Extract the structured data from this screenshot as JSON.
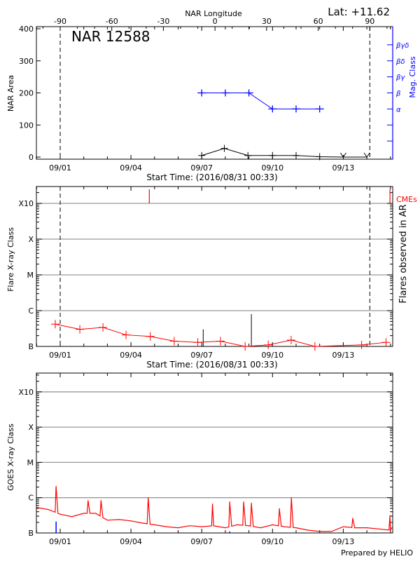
{
  "header": {
    "latitude": "Lat: +11.62",
    "prepared_by": "Prepared by HELIO"
  },
  "colors": {
    "area": "#000000",
    "mag_class": "#0000ff",
    "flares": "#ff0000",
    "cmes": "#ff0000",
    "goes": "#ff0000",
    "grid": "#999999",
    "goes_events": "#0000ff"
  },
  "chart_data": [
    {
      "type": "line",
      "title": "NAR 12588",
      "xlabel": "Start Time: (2016/08/31 00:33)",
      "ylabel": "NAR Area",
      "y2label": "Mag. Class",
      "top_xlabel": "NAR Longitude",
      "xlim": [
        "2016-08-31T00:00",
        "2016-09-15T00:00"
      ],
      "ylim": [
        -7,
        407
      ],
      "x_tick_labels": [
        {
          "date": "2016-09-01T00:00",
          "label": "09/01"
        },
        {
          "date": "2016-09-04T00:00",
          "label": "09/04"
        },
        {
          "date": "2016-09-07T00:00",
          "label": "09/07"
        },
        {
          "date": "2016-09-10T00:00",
          "label": "09/10"
        },
        {
          "date": "2016-09-13T00:00",
          "label": "09/13"
        }
      ],
      "y_ticks": [
        0,
        100,
        200,
        300,
        400
      ],
      "y_tick_labels": [
        "0",
        "100",
        "200",
        "300",
        "400"
      ],
      "top_x_ticks": [
        -90,
        -60,
        -30,
        0,
        30,
        60,
        90
      ],
      "top_x_tick_labels": [
        "-90",
        "-60",
        "-30",
        "0",
        "30",
        "60",
        "90"
      ],
      "longitude_reference": {
        "lon_-90": "2016-09-01T00:00",
        "lon_90": "2016-09-14T03:00"
      },
      "limb_lines": [
        "2016-09-01T00:00",
        "2016-09-14T03:00"
      ],
      "mag_class_axis": [
        {
          "label": "α",
          "value": 150
        },
        {
          "label": "β",
          "value": 200
        },
        {
          "label": "βγ",
          "value": 250
        },
        {
          "label": "βδ",
          "value": 300
        },
        {
          "label": "βγδ",
          "value": 350
        }
      ],
      "series": [
        {
          "kind": "area",
          "x": [
            "2016-09-07T00:00",
            "2016-09-07T23:00",
            "2016-09-08T23:00",
            "2016-09-10T00:00",
            "2016-09-11T00:00",
            "2016-09-12T00:00",
            "2016-09-13T00:00",
            "2016-09-14T00:00"
          ],
          "values": [
            5,
            27,
            5,
            5,
            5,
            1,
            0,
            0
          ],
          "markers": [
            "+",
            "+",
            "+",
            "+",
            "+",
            "+",
            "v",
            "v"
          ]
        },
        {
          "kind": "mag_class",
          "x": [
            "2016-09-07T00:00",
            "2016-09-08T00:00",
            "2016-09-09T00:00",
            "2016-09-10T00:00",
            "2016-09-11T00:00",
            "2016-09-12T00:00"
          ],
          "values": [
            "β",
            "β",
            "β",
            "α",
            "α",
            "α"
          ]
        }
      ]
    },
    {
      "type": "line",
      "xlabel": "Start Time: (2016/08/31 00:33)",
      "ylabel": "Flare X-ray Class",
      "y2label": "Flares observed in AR",
      "cme_label": "CMEs",
      "scale": "log",
      "y_tick_labels": [
        "B",
        "C",
        "M",
        "X",
        "X10"
      ],
      "ylim": [
        "B1.0",
        "X10 x3.3"
      ],
      "grid": true,
      "limb_lines": [
        "2016-09-01T00:00",
        "2016-09-14T03:00"
      ],
      "flares": {
        "x": [
          "2016-08-31T19:00",
          "2016-09-01T20:00",
          "2016-09-02T19:30",
          "2016-09-03T19:00",
          "2016-09-04T19:40",
          "2016-09-05T20:00",
          "2016-09-06T20:00",
          "2016-09-07T19:00",
          "2016-09-08T20:10",
          "2016-09-09T19:40",
          "2016-09-10T19:00",
          "2016-09-11T19:10",
          "2016-09-13T18:40",
          "2016-09-14T19:30"
        ],
        "values": [
          "B4.2",
          "B3.0",
          "B3.4",
          "B2.1",
          "B1.9",
          "B1.4",
          "B1.3",
          "B1.4",
          "B1.0",
          "B1.1",
          "B1.5",
          "B1.0",
          "B1.1",
          "B1.3"
        ]
      },
      "ar_flares": {
        "x": [
          "2016-09-07T01:30",
          "2016-09-09T02:30"
        ],
        "values": [
          "B3.0",
          "B8.0"
        ]
      },
      "cmes": [
        "2016-09-04T18:40",
        "2016-09-14T23:30"
      ]
    },
    {
      "type": "line",
      "ylabel": "GOES X-ray Class",
      "scale": "log",
      "y_tick_labels": [
        "B",
        "C",
        "M",
        "X",
        "X10"
      ],
      "grid": true,
      "x_tick_labels": [
        "09/01",
        "09/04",
        "09/07",
        "09/10",
        "09/13"
      ],
      "background": {
        "x": [
          "2016-08-31T00:00",
          "2016-08-31T12:00",
          "2016-09-01T00:00",
          "2016-09-01T12:00",
          "2016-09-02T00:00",
          "2016-09-02T12:00",
          "2016-09-03T00:00",
          "2016-09-03T12:00",
          "2016-09-04T00:00",
          "2016-09-04T12:00",
          "2016-09-05T00:00",
          "2016-09-05T12:00",
          "2016-09-06T00:00",
          "2016-09-06T12:00",
          "2016-09-07T00:00",
          "2016-09-07T12:00",
          "2016-09-08T00:00",
          "2016-09-08T12:00",
          "2016-09-09T00:00",
          "2016-09-09T12:00",
          "2016-09-10T00:00",
          "2016-09-10T12:00",
          "2016-09-11T00:00",
          "2016-09-11T12:00",
          "2016-09-12T00:00",
          "2016-09-12T12:00",
          "2016-09-13T00:00",
          "2016-09-13T12:00",
          "2016-09-14T00:00",
          "2016-09-14T12:00",
          "2016-09-15T00:00"
        ],
        "values": [
          "B5.3",
          "B4.6",
          "B3.4",
          "B2.9",
          "B3.6",
          "B3.6",
          "B2.3",
          "B2.4",
          "B2.2",
          "B1.9",
          "B1.7",
          "B1.5",
          "B1.4",
          "B1.6",
          "B1.5",
          "B1.6",
          "B1.4",
          "B1.7",
          "B1.6",
          "B1.4",
          "B1.7",
          "B1.5",
          "B1.4",
          "B1.2",
          "B1.1",
          "B1.1",
          "B1.5",
          "B1.4",
          "B1.4",
          "B1.3",
          "B1.2"
        ]
      },
      "peaks": {
        "x": [
          "2016-08-31T19:50",
          "2016-09-02T04:20",
          "2016-09-02T17:30",
          "2016-09-04T17:30",
          "2016-09-07T11:00",
          "2016-09-08T04:30",
          "2016-09-08T18:40",
          "2016-09-09T02:30",
          "2016-09-10T07:00",
          "2016-09-10T19:10",
          "2016-09-13T09:40",
          "2016-09-14T23:30"
        ],
        "values": [
          "C2.1",
          "B8.3",
          "B8.3",
          "C1.0",
          "B6.6",
          "B7.6",
          "B7.6",
          "B7.0",
          "B4.9",
          "C1.0",
          "B2.6",
          "B3.1"
        ]
      },
      "events": {
        "x": [
          "2016-08-31T19:50",
          "2016-09-08T04:30"
        ],
        "values": [
          "B2.1",
          "B1.1"
        ]
      }
    }
  ]
}
